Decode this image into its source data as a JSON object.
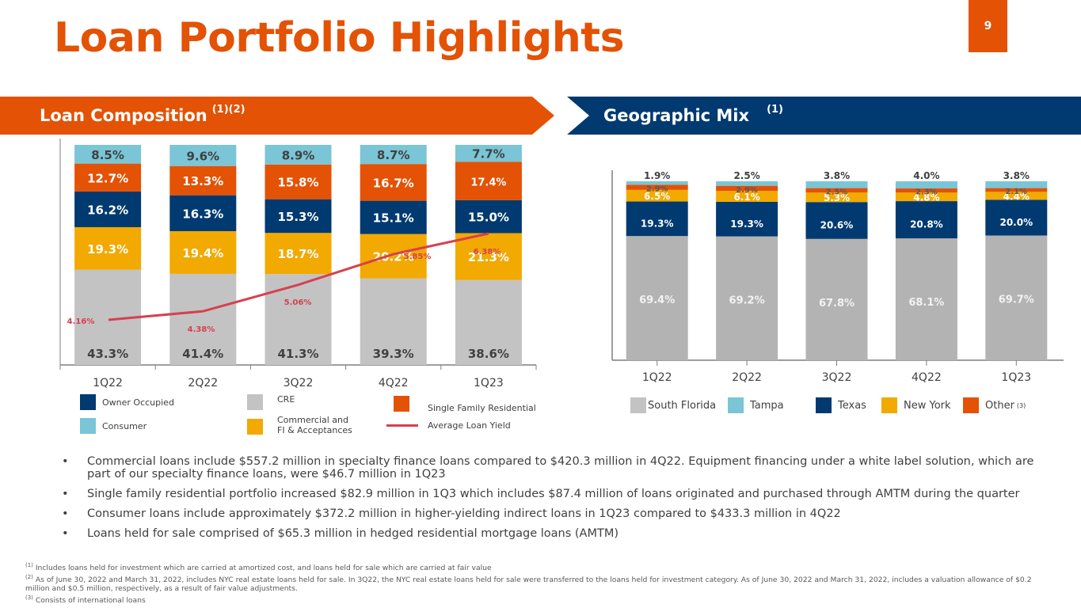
{
  "page": {
    "title": "Loan Portfolio Highlights",
    "page_number": "9"
  },
  "banners": {
    "left": {
      "title": "Loan Composition",
      "sup": "(1)(2)"
    },
    "right": {
      "title": "Geographic Mix",
      "sup": "(1)"
    }
  },
  "legend_left": {
    "owner_occupied": "Owner Occupied",
    "consumer": "Consumer",
    "cre": "CRE",
    "commercial": "Commercial and FI & Acceptances",
    "commercial_line1": "Commercial and",
    "commercial_line2": "FI & Acceptances",
    "sfr": "Single Family Residential",
    "yield": "Average Loan Yield"
  },
  "legend_right": {
    "south_florida": "South Florida",
    "tampa": "Tampa",
    "texas": "Texas",
    "new_york": "New York",
    "other": "Other",
    "other_sup": "(3)"
  },
  "colors": {
    "orange": "#E35205",
    "navy": "#003A70",
    "gray": "#C3C3C3",
    "gray_geo": "#B3B3B3",
    "gold": "#F2A900",
    "light_blue": "#7AC5D6",
    "yield_line": "#D6404F"
  },
  "chart_data": [
    {
      "type": "bar",
      "stacked": true,
      "title": "Loan Composition (1)(2)",
      "categories": [
        "1Q22",
        "2Q22",
        "3Q22",
        "4Q22",
        "1Q23"
      ],
      "series": [
        {
          "name": "CRE",
          "values": [
            43.3,
            41.4,
            41.3,
            39.3,
            38.6
          ],
          "color": "#C3C3C3"
        },
        {
          "name": "Commercial and FI & Acceptances",
          "values": [
            19.3,
            19.4,
            18.7,
            20.2,
            21.3
          ],
          "color": "#F2A900"
        },
        {
          "name": "Owner Occupied",
          "values": [
            16.2,
            16.3,
            15.3,
            15.1,
            15.0
          ],
          "color": "#003A70"
        },
        {
          "name": "Single Family Residential",
          "values": [
            12.7,
            13.3,
            15.8,
            16.7,
            17.4
          ],
          "color": "#E35205"
        },
        {
          "name": "Consumer",
          "values": [
            8.5,
            9.6,
            8.9,
            8.7,
            7.7
          ],
          "color": "#7AC5D6"
        }
      ],
      "line_series": {
        "name": "Average Loan Yield",
        "values": [
          4.16,
          4.38,
          5.06,
          5.85,
          6.38
        ],
        "labels": [
          "4.16%",
          "4.38%",
          "5.06%",
          "5.85%",
          "6.38%"
        ],
        "color": "#D6404F"
      },
      "unit": "%",
      "ylim": [
        0,
        100
      ],
      "grid": false,
      "legend": "bottom"
    },
    {
      "type": "bar",
      "stacked": true,
      "title": "Geographic Mix (1)",
      "categories": [
        "1Q22",
        "2Q22",
        "3Q22",
        "4Q22",
        "1Q23"
      ],
      "series": [
        {
          "name": "South Florida",
          "values": [
            69.4,
            69.2,
            67.8,
            68.1,
            69.7
          ],
          "color": "#B3B3B3"
        },
        {
          "name": "Texas",
          "values": [
            19.3,
            19.3,
            20.6,
            20.8,
            20.0
          ],
          "color": "#003A70"
        },
        {
          "name": "New York",
          "values": [
            6.5,
            6.1,
            5.3,
            4.8,
            4.4
          ],
          "color": "#F2A900"
        },
        {
          "name": "Other (3)",
          "values": [
            2.9,
            2.9,
            2.5,
            2.3,
            2.1
          ],
          "color": "#E35205"
        },
        {
          "name": "Tampa",
          "values": [
            1.9,
            2.5,
            3.8,
            4.0,
            3.8
          ],
          "color": "#7AC5D6"
        }
      ],
      "unit": "%",
      "ylim": [
        0,
        100
      ],
      "grid": false,
      "legend": "bottom"
    }
  ],
  "bullets": [
    "Commercial loans include $557.2 million in specialty finance loans compared to $420.3 million in 4Q22. Equipment financing under a white label solution, which are part of our specialty finance loans, were $46.7 million in 1Q23",
    "Single family residential portfolio increased $82.9 million in 1Q3 which includes $87.4 million of loans originated and purchased through AMTM during the quarter",
    "Consumer loans include approximately $372.2 million in higher-yielding indirect loans in 1Q23 compared to $433.3 million in 4Q22",
    "Loans held for sale comprised of $65.3 million in hedged residential mortgage loans (AMTM)"
  ],
  "footnotes": [
    {
      "mark": "(1)",
      "text": "Includes loans held for investment which are carried at amortized cost, and loans held for sale which are carried at fair value"
    },
    {
      "mark": "(2)",
      "text": "As of June 30, 2022 and March 31, 2022, includes NYC real estate loans held for sale. In 3Q22, the NYC real estate loans held for sale were transferred to the loans held for investment category. As of June 30, 2022 and March 31, 2022, includes a valuation allowance of $0.2 million and $0.5 million, respectively, as a result of fair value adjustments."
    },
    {
      "mark": "(3)",
      "text": "Consists of international loans"
    }
  ]
}
